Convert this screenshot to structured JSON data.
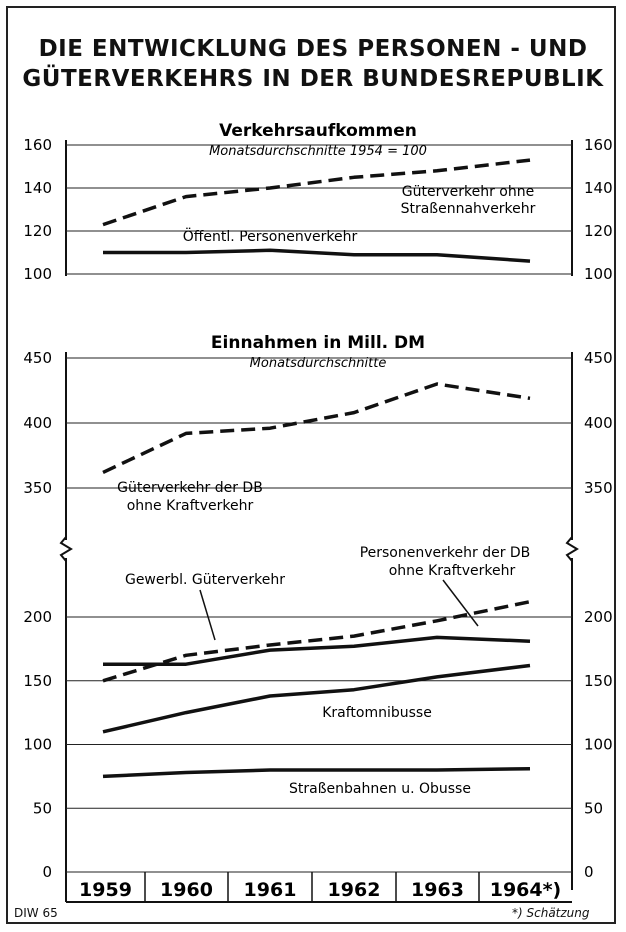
{
  "title_line1": "DIE ENTWICKLUNG DES PERSONEN - UND",
  "title_line2": "GÜTERVERKEHRS IN DER BUNDESREPUBLIK",
  "footer_left": "DIW 65",
  "footnote": "*) Schätzung",
  "chart_data": [
    {
      "type": "line",
      "title": "Verkehrsaufkommen",
      "subtitle": "Monatsdurchschnitte 1954 = 100",
      "categories": [
        "1959",
        "1960",
        "1961",
        "1962",
        "1963",
        "1964*)"
      ],
      "ylim": [
        100,
        160
      ],
      "yticks": [
        100,
        120,
        140,
        160
      ],
      "series": [
        {
          "name": "Güterverkehr ohne Straßennahverkehr",
          "style": "dashed",
          "values": [
            123,
            136,
            140,
            145,
            148,
            153
          ]
        },
        {
          "name": "Öffentl. Personenverkehr",
          "style": "solid",
          "values": [
            110,
            110,
            111,
            109,
            109,
            106
          ]
        }
      ],
      "labels": [
        "Güterverkehr ohne",
        "Straßennahverkehr",
        "Öffentl. Personenverkehr"
      ]
    },
    {
      "type": "line",
      "title": "Einnahmen in Mill. DM",
      "subtitle": "Monatsdurchschnitte",
      "categories": [
        "1959",
        "1960",
        "1961",
        "1962",
        "1963",
        "1964*)"
      ],
      "ylim_upper": [
        325,
        450
      ],
      "yticks_upper": [
        350,
        400,
        450
      ],
      "ylim_lower": [
        0,
        225
      ],
      "yticks_lower": [
        0,
        50,
        100,
        150,
        200
      ],
      "series": [
        {
          "name": "Güterverkehr der DB ohne Kraftverkehr",
          "style": "dashed",
          "panel": "upper",
          "values": [
            362,
            392,
            396,
            408,
            430,
            419
          ]
        },
        {
          "name": "Personenverkehr der DB ohne Kraftverkehr",
          "style": "dashed",
          "panel": "lower",
          "values": [
            150,
            170,
            178,
            185,
            197,
            212
          ]
        },
        {
          "name": "Gewerbl. Güterverkehr",
          "style": "solid",
          "panel": "lower",
          "values": [
            163,
            163,
            174,
            177,
            184,
            181
          ]
        },
        {
          "name": "Kraftomnibusse",
          "style": "solid",
          "panel": "lower",
          "values": [
            110,
            125,
            138,
            143,
            153,
            162
          ]
        },
        {
          "name": "Straßenbahnen u. Obusse",
          "style": "solid",
          "panel": "lower",
          "values": [
            75,
            78,
            80,
            80,
            80,
            81
          ]
        }
      ],
      "labels": [
        "Güterverkehr der DB",
        "ohne Kraftverkehr",
        "Personenverkehr der DB",
        "ohne Kraftverkehr",
        "Gewerbl. Güterverkehr",
        "Kraftomnibusse",
        "Straßenbahnen u. Obusse"
      ]
    }
  ]
}
